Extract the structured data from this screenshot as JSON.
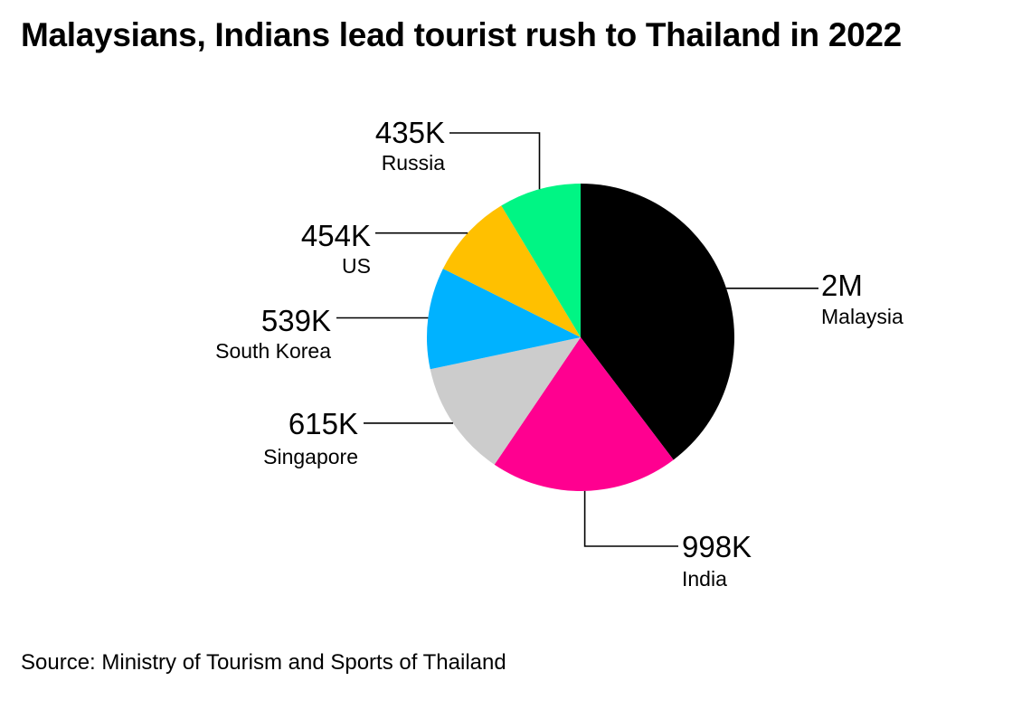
{
  "title": "Malaysians, Indians lead tourist rush to Thailand in 2022",
  "source": "Source: Ministry of Tourism and Sports of Thailand",
  "chart_data": {
    "type": "pie",
    "title": "Malaysians, Indians lead tourist rush to Thailand in 2022",
    "slices": [
      {
        "label": "Malaysia",
        "value": 2000000,
        "value_label": "2M",
        "color": "#000000"
      },
      {
        "label": "India",
        "value": 998000,
        "value_label": "998K",
        "color": "#FF0090"
      },
      {
        "label": "Singapore",
        "value": 615000,
        "value_label": "615K",
        "color": "#CCCCCC"
      },
      {
        "label": "South Korea",
        "value": 539000,
        "value_label": "539K",
        "color": "#00B2FF"
      },
      {
        "label": "US",
        "value": 454000,
        "value_label": "454K",
        "color": "#FFC000"
      },
      {
        "label": "Russia",
        "value": 435000,
        "value_label": "435K",
        "color": "#00F584"
      }
    ],
    "start": "12 o'clock",
    "direction": "clockwise",
    "legend": "none (direct labels with leader lines)"
  }
}
